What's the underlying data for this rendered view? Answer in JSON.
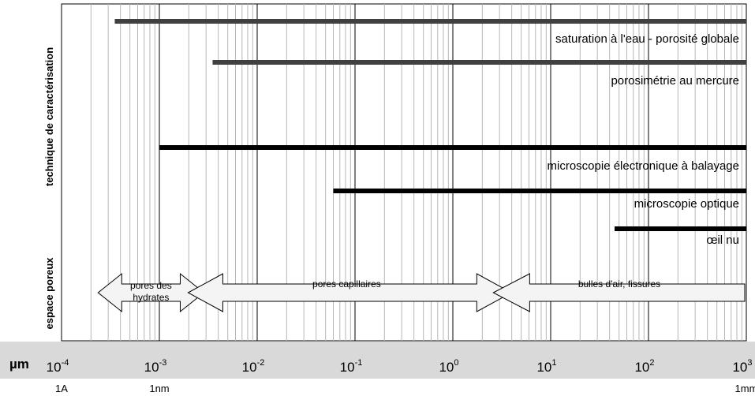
{
  "chart_data": {
    "type": "range-bar",
    "x_scale": "log",
    "xlim": [
      0.0001,
      1000
    ],
    "x_unit": "µm",
    "x_ticks": [
      {
        "base": "10",
        "exp": "-4",
        "value": 0.0001
      },
      {
        "base": "10",
        "exp": "-3",
        "value": 0.001
      },
      {
        "base": "10",
        "exp": "-2",
        "value": 0.01
      },
      {
        "base": "10",
        "exp": "-1",
        "value": 0.1
      },
      {
        "base": "10",
        "exp": "0",
        "value": 1
      },
      {
        "base": "10",
        "exp": "1",
        "value": 10
      },
      {
        "base": "10",
        "exp": "2",
        "value": 100
      },
      {
        "base": "10",
        "exp": "3",
        "value": 1000
      }
    ],
    "x_sublabels": [
      {
        "text": "1A",
        "value": 0.0001
      },
      {
        "text": "1nm",
        "value": 0.001
      },
      {
        "text": "1mm",
        "value": 1000
      }
    ],
    "grid": "vertical, minor log gridlines",
    "y_section_labels": [
      "technique de caractérisation",
      "espace poreux"
    ],
    "techniques": [
      {
        "label": "saturation à l'eau - porosité globale",
        "from": 0.00035,
        "to": 1000,
        "color": "#404040"
      },
      {
        "label": "porosimétrie au mercure",
        "from": 0.0035,
        "to": 1000,
        "color": "#404040"
      },
      {
        "label": "microscopie électronique à balayage",
        "from": 0.001,
        "to": 1000,
        "color": "#000000"
      },
      {
        "label": "microscopie optique",
        "from": 0.06,
        "to": 1000,
        "color": "#000000"
      },
      {
        "label": "œil nu",
        "from": 45,
        "to": 1000,
        "color": "#000000"
      }
    ],
    "pore_ranges": [
      {
        "label_lines": [
          "pores des",
          "hydrates"
        ],
        "from": 0.0002,
        "to": 0.0035
      },
      {
        "label_lines": [
          "pores capillaires"
        ],
        "from": 0.0035,
        "to": 2.5
      },
      {
        "label_lines": [
          "bulles d'air, fissures"
        ],
        "from": 2.5,
        "to": 1000
      }
    ]
  }
}
